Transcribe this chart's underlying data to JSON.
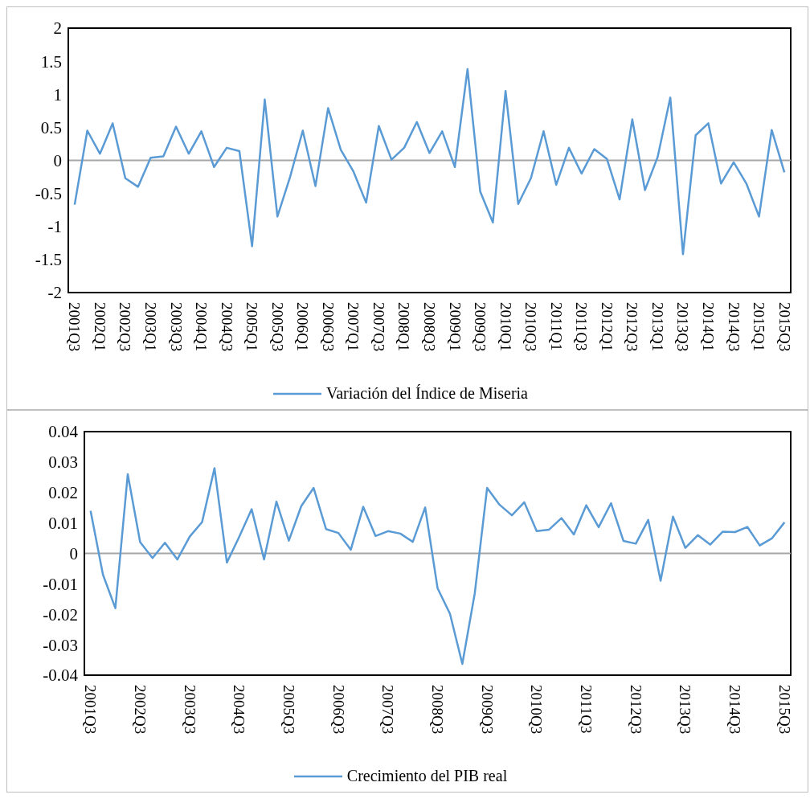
{
  "chart_data": [
    {
      "type": "line",
      "categories": [
        "2001Q3",
        null,
        "2002Q1",
        null,
        "2002Q3",
        null,
        "2003Q1",
        null,
        "2003Q3",
        null,
        "2004Q1",
        null,
        "2004Q3",
        null,
        "2005Q1",
        null,
        "2005Q3",
        null,
        "2006Q1",
        null,
        "2006Q3",
        null,
        "2007Q1",
        null,
        "2007Q3",
        null,
        "2008Q1",
        null,
        "2008Q3",
        null,
        "2009Q1",
        null,
        "2009Q3",
        null,
        "2010Q1",
        null,
        "2010Q3",
        null,
        "2011Q1",
        null,
        "2011Q3",
        null,
        "2012Q1",
        null,
        "2012Q3",
        null,
        "2013Q1",
        null,
        "2013Q3",
        null,
        "2014Q1",
        null,
        "2014Q3",
        null,
        "2015Q1",
        null,
        "2015Q3"
      ],
      "series": [
        {
          "name": "Variación del Índice de Miseria",
          "color": "#5b9bd5",
          "values": [
            -0.67,
            0.45,
            0.1,
            0.56,
            -0.27,
            -0.4,
            0.04,
            0.06,
            0.51,
            0.1,
            0.44,
            -0.1,
            0.19,
            0.14,
            -1.3,
            0.92,
            -0.85,
            -0.25,
            0.45,
            -0.39,
            0.79,
            0.16,
            -0.17,
            -0.64,
            0.52,
            0.01,
            0.19,
            0.58,
            0.11,
            0.44,
            -0.1,
            1.38,
            -0.47,
            -0.94,
            1.05,
            -0.66,
            -0.27,
            0.44,
            -0.37,
            0.19,
            -0.2,
            0.17,
            0.02,
            -0.59,
            0.62,
            -0.45,
            0.05,
            0.95,
            -1.42,
            0.38,
            0.56,
            -0.35,
            -0.03,
            -0.35,
            -0.85,
            0.46,
            -0.18
          ]
        }
      ],
      "ylim": [
        -2,
        2
      ],
      "yticks": [
        -2,
        -1.5,
        -1,
        -0.5,
        0,
        0.5,
        1,
        1.5,
        2
      ],
      "ref_lines": [
        {
          "axis": "y",
          "value": 0,
          "color": "#a6a6a6"
        }
      ],
      "grid": false,
      "legend": "bottom",
      "marker": "none",
      "line_style": "solid"
    },
    {
      "type": "line",
      "categories": [
        "2001Q3",
        null,
        null,
        null,
        "2002Q3",
        null,
        null,
        null,
        "2003Q3",
        null,
        null,
        null,
        "2004Q3",
        null,
        null,
        null,
        "2005Q3",
        null,
        null,
        null,
        "2006Q3",
        null,
        null,
        null,
        "2007Q3",
        null,
        null,
        null,
        "2008Q3",
        null,
        null,
        null,
        "2009Q3",
        null,
        null,
        null,
        "2010Q3",
        null,
        null,
        null,
        "2011Q3",
        null,
        null,
        null,
        "2012Q3",
        null,
        null,
        null,
        "2013Q3",
        null,
        null,
        null,
        "2014Q3",
        null,
        null,
        null,
        "2015Q3"
      ],
      "series": [
        {
          "name": "Crecimiento del PIB real",
          "color": "#5b9bd5",
          "values": [
            0.014,
            -0.007,
            -0.018,
            0.026,
            0.0037,
            -0.0015,
            0.0035,
            -0.002,
            0.0055,
            0.0103,
            0.028,
            -0.003,
            0.0055,
            0.0145,
            -0.002,
            0.017,
            0.0042,
            0.0155,
            0.0215,
            0.008,
            0.0067,
            0.0012,
            0.0153,
            0.0057,
            0.0073,
            0.0065,
            0.0038,
            0.0151,
            -0.0114,
            -0.0198,
            -0.0363,
            -0.0132,
            0.0215,
            0.016,
            0.0125,
            0.0168,
            0.0073,
            0.0078,
            0.0116,
            0.0062,
            0.0158,
            0.0086,
            0.0165,
            0.0041,
            0.0032,
            0.011,
            -0.009,
            0.0121,
            0.0018,
            0.006,
            0.0029,
            0.0071,
            0.007,
            0.0087,
            0.0026,
            0.005,
            0.0102
          ]
        }
      ],
      "ylim": [
        -0.04,
        0.04
      ],
      "yticks": [
        -0.04,
        -0.03,
        -0.02,
        -0.01,
        0,
        0.01,
        0.02,
        0.03,
        0.04
      ],
      "ref_lines": [
        {
          "axis": "y",
          "value": 0,
          "color": "#a6a6a6"
        }
      ],
      "grid": false,
      "legend": "bottom",
      "marker": "none",
      "line_style": "solid"
    }
  ]
}
